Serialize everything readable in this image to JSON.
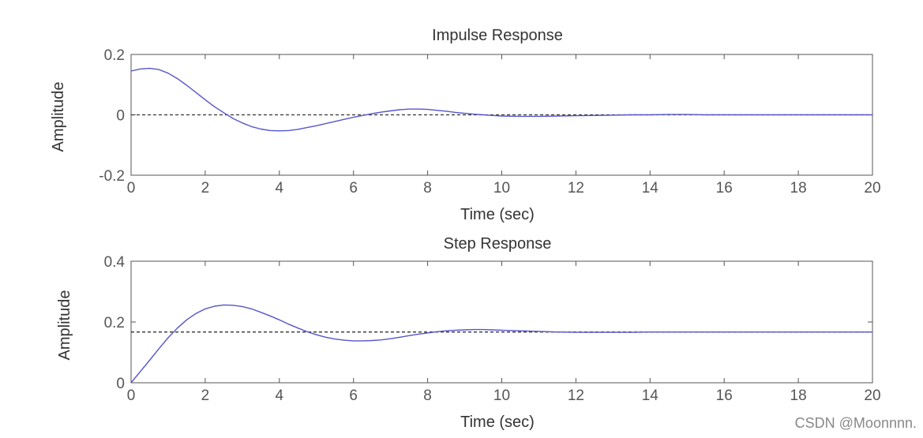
{
  "chart_data": [
    {
      "type": "line",
      "title": "Impulse Response",
      "xlabel": "Time (sec)",
      "ylabel": "Amplitude",
      "xlim": [
        0,
        20
      ],
      "ylim": [
        -0.2,
        0.2
      ],
      "xticks": [
        0,
        2,
        4,
        6,
        8,
        10,
        12,
        14,
        16,
        18,
        20
      ],
      "xtick_labels": [
        "0",
        "2",
        "4",
        "6",
        "8",
        "10",
        "12",
        "14",
        "16",
        "18",
        "20"
      ],
      "yticks": [
        -0.2,
        0,
        0.2
      ],
      "ytick_labels": [
        "-0.2",
        "0",
        "0.2"
      ],
      "grid": false,
      "reference_line": 0,
      "series": [
        {
          "name": "impulse",
          "color": "#5555cc",
          "x": [
            0,
            0.25,
            0.5,
            0.75,
            1,
            1.25,
            1.5,
            1.75,
            2,
            2.25,
            2.5,
            2.75,
            3,
            3.25,
            3.5,
            3.75,
            4,
            4.25,
            4.5,
            4.75,
            5,
            5.25,
            5.5,
            5.75,
            6,
            6.25,
            6.5,
            6.75,
            7,
            7.25,
            7.5,
            7.75,
            8,
            8.25,
            8.5,
            8.75,
            9,
            9.25,
            9.5,
            9.75,
            10,
            10.5,
            11,
            11.5,
            12,
            12.5,
            13,
            13.5,
            14,
            14.5,
            15,
            15.5,
            16,
            17,
            18,
            19,
            20
          ],
          "y": [
            0.145,
            0.152,
            0.154,
            0.15,
            0.138,
            0.12,
            0.098,
            0.074,
            0.05,
            0.027,
            0.007,
            -0.012,
            -0.027,
            -0.039,
            -0.047,
            -0.052,
            -0.053,
            -0.052,
            -0.048,
            -0.042,
            -0.036,
            -0.029,
            -0.022,
            -0.015,
            -0.008,
            -0.002,
            0.004,
            0.009,
            0.013,
            0.017,
            0.019,
            0.019,
            0.018,
            0.015,
            0.012,
            0.008,
            0.005,
            0.002,
            0.0,
            -0.002,
            -0.004,
            -0.005,
            -0.005,
            -0.004,
            -0.003,
            -0.002,
            -0.001,
            0.0,
            0.0,
            0.001,
            0.001,
            0.0,
            0.0,
            0.0,
            0.0,
            0.0,
            0.0
          ]
        }
      ]
    },
    {
      "type": "line",
      "title": "Step Response",
      "xlabel": "Time (sec)",
      "ylabel": "Amplitude",
      "xlim": [
        0,
        20
      ],
      "ylim": [
        0,
        0.4
      ],
      "xticks": [
        0,
        2,
        4,
        6,
        8,
        10,
        12,
        14,
        16,
        18,
        20
      ],
      "xtick_labels": [
        "0",
        "2",
        "4",
        "6",
        "8",
        "10",
        "12",
        "14",
        "16",
        "18",
        "20"
      ],
      "yticks": [
        0,
        0.2,
        0.4
      ],
      "ytick_labels": [
        "0",
        "0.2",
        "0.4"
      ],
      "grid": false,
      "reference_line": 0.167,
      "series": [
        {
          "name": "step",
          "color": "#5555cc",
          "x": [
            0,
            0.25,
            0.5,
            0.75,
            1,
            1.25,
            1.5,
            1.75,
            2,
            2.25,
            2.5,
            2.75,
            3,
            3.25,
            3.5,
            3.75,
            4,
            4.25,
            4.5,
            4.75,
            5,
            5.25,
            5.5,
            5.75,
            6,
            6.25,
            6.5,
            6.75,
            7,
            7.25,
            7.5,
            7.75,
            8,
            8.25,
            8.5,
            8.75,
            9,
            9.25,
            9.5,
            9.75,
            10,
            10.5,
            11,
            11.5,
            12,
            12.5,
            13,
            13.5,
            14,
            14.5,
            15,
            15.5,
            16,
            17,
            18,
            19,
            20
          ],
          "y": [
            0.0,
            0.037,
            0.074,
            0.112,
            0.148,
            0.18,
            0.207,
            0.228,
            0.243,
            0.252,
            0.256,
            0.255,
            0.251,
            0.243,
            0.232,
            0.22,
            0.207,
            0.193,
            0.18,
            0.168,
            0.158,
            0.15,
            0.144,
            0.14,
            0.138,
            0.138,
            0.139,
            0.141,
            0.145,
            0.15,
            0.155,
            0.16,
            0.164,
            0.168,
            0.171,
            0.173,
            0.174,
            0.175,
            0.175,
            0.174,
            0.173,
            0.171,
            0.169,
            0.167,
            0.166,
            0.166,
            0.166,
            0.166,
            0.167,
            0.167,
            0.167,
            0.167,
            0.167,
            0.167,
            0.167,
            0.167,
            0.167
          ]
        }
      ]
    }
  ],
  "watermark": "CSDN @Moonnnn."
}
